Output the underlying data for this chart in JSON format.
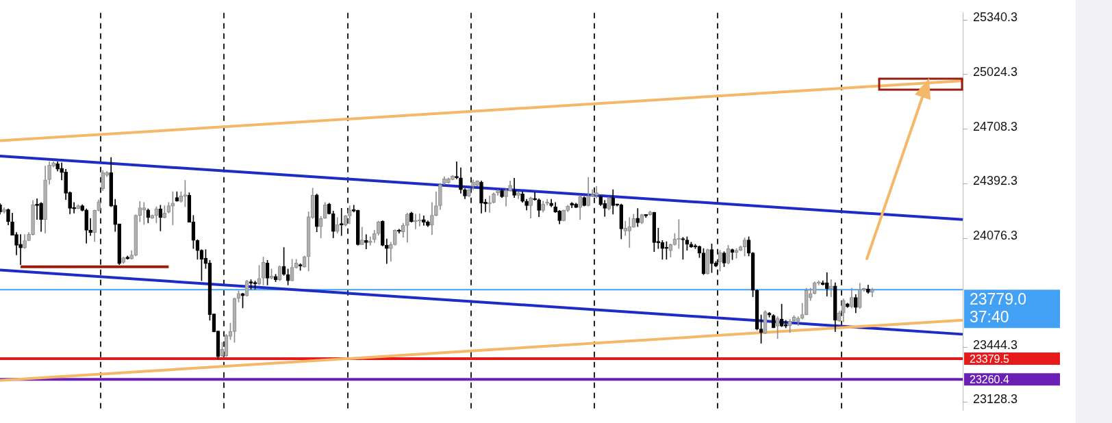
{
  "chart_data": {
    "type": "candlestick",
    "categories": [
      null,
      null,
      null,
      null,
      null,
      null,
      null,
      null,
      null,
      null,
      null,
      null,
      null,
      null,
      null,
      null,
      null,
      null,
      null,
      null,
      null,
      null,
      null,
      null,
      null,
      null,
      null,
      null,
      null,
      null,
      null,
      null,
      null,
      null,
      null,
      null,
      null,
      null,
      null,
      null,
      null,
      null,
      null,
      null,
      null,
      null,
      null,
      null,
      null,
      null,
      null,
      null,
      null,
      null,
      null,
      null,
      null,
      null,
      null,
      null,
      null,
      null,
      null,
      null,
      null,
      null,
      null,
      null,
      null,
      null,
      null,
      null,
      null,
      null,
      null,
      null,
      null,
      null,
      null,
      null,
      null,
      null,
      null,
      null,
      null,
      null,
      null,
      null,
      null,
      null,
      null,
      null,
      null,
      null,
      null,
      null,
      null,
      null,
      null,
      null,
      null,
      null,
      null,
      null,
      null,
      null,
      null,
      null,
      null,
      null,
      null,
      null,
      null,
      null,
      null,
      null,
      null,
      null,
      null,
      null,
      null,
      null,
      null,
      null,
      null,
      null,
      null,
      null,
      null,
      null,
      null,
      null,
      null,
      null,
      null,
      null,
      null,
      null,
      null,
      null,
      null,
      null,
      null,
      null,
      null,
      null,
      null,
      null,
      null,
      null,
      null,
      null,
      null,
      null,
      null,
      null,
      null,
      null,
      null,
      null,
      null,
      null,
      null,
      null,
      null,
      null,
      null,
      null,
      null,
      null,
      null,
      null,
      null,
      null,
      null,
      null,
      null,
      null,
      null,
      null,
      null,
      null,
      null,
      null,
      null,
      null,
      null,
      null,
      null,
      null,
      null,
      null,
      null,
      null,
      null,
      null,
      null,
      null,
      null,
      null,
      null,
      null,
      null,
      null,
      null,
      null,
      null,
      null,
      null,
      null,
      null,
      null,
      null,
      null,
      null,
      null,
      null,
      null,
      null,
      null,
      null,
      null,
      null,
      null,
      null,
      null,
      null,
      null,
      null,
      null,
      null,
      null,
      null,
      null,
      null
    ],
    "ohlc": [
      [
        24271,
        24278,
        24216,
        24228
      ],
      [
        24230,
        24253,
        24222,
        24243
      ],
      [
        24243,
        24247,
        24154,
        24172
      ],
      [
        24172,
        24222,
        24094,
        24094
      ],
      [
        24098,
        24110,
        23980,
        24036
      ],
      [
        24042,
        24098,
        23924,
        24021
      ],
      [
        24021,
        24098,
        24017,
        24063
      ],
      [
        24063,
        24110,
        24061,
        24100
      ],
      [
        24098,
        24296,
        24094,
        24271
      ],
      [
        24275,
        24305,
        24185,
        24265
      ],
      [
        24280,
        24284,
        24116,
        24185
      ],
      [
        24185,
        24495,
        24106,
        24414
      ],
      [
        24416,
        24519,
        24389,
        24501
      ],
      [
        24495,
        24519,
        24488,
        24513
      ],
      [
        24507,
        24519,
        24466,
        24476
      ],
      [
        24482,
        24513,
        24414,
        24457
      ],
      [
        24460,
        24476,
        24300,
        24337
      ],
      [
        24342,
        24346,
        24218,
        24250
      ],
      [
        24250,
        24284,
        24222,
        24247
      ],
      [
        24249,
        24271,
        24247,
        24265
      ],
      [
        24265,
        24271,
        24234,
        24238
      ],
      [
        24240,
        24247,
        24048,
        24123
      ],
      [
        24123,
        24191,
        24092,
        24110
      ],
      [
        24110,
        24240,
        24058,
        24238
      ],
      [
        24238,
        24299,
        24234,
        24288
      ],
      [
        24364,
        24470,
        24352,
        24457
      ],
      [
        24441,
        24464,
        24433,
        24457
      ],
      [
        24457,
        24544,
        24259,
        24263
      ],
      [
        24268,
        24302,
        24116,
        24156
      ],
      [
        24160,
        24160,
        23924,
        23930
      ],
      [
        23937,
        23968,
        23930,
        23964
      ],
      [
        23968,
        23974,
        23955,
        23958
      ],
      [
        23958,
        24005,
        23955,
        23980
      ],
      [
        23978,
        24213,
        23974,
        24209
      ],
      [
        24209,
        24290,
        24172,
        24253
      ],
      [
        24240,
        24284,
        24156,
        24253
      ],
      [
        24240,
        24247,
        24166,
        24197
      ],
      [
        24193,
        24212,
        24191,
        24209
      ],
      [
        24209,
        24259,
        24166,
        24247
      ],
      [
        24247,
        24268,
        24119,
        24197
      ],
      [
        24197,
        24265,
        24193,
        24222
      ],
      [
        24228,
        24284,
        24222,
        24265
      ],
      [
        24263,
        24346,
        24154,
        24280
      ],
      [
        24312,
        24346,
        24290,
        24292
      ],
      [
        24290,
        24346,
        24284,
        24321
      ],
      [
        24320,
        24412,
        24259,
        24325
      ],
      [
        24325,
        24340,
        24169,
        24169
      ],
      [
        24172,
        24209,
        24017,
        24064
      ],
      [
        24064,
        24069,
        23955,
        24005
      ],
      [
        24007,
        24011,
        23831,
        23955
      ],
      [
        23961,
        24011,
        23902,
        23930
      ],
      [
        23934,
        23949,
        23602,
        23635
      ],
      [
        23639,
        23639,
        23534,
        23536
      ],
      [
        23540,
        23540,
        23379,
        23391
      ],
      [
        23397,
        23474,
        23391,
        23434
      ],
      [
        23397,
        23521,
        23391,
        23513
      ],
      [
        23509,
        23586,
        23490,
        23537
      ],
      [
        23537,
        23732,
        23474,
        23728
      ],
      [
        23728,
        23772,
        23707,
        23757
      ],
      [
        23757,
        23759,
        23673,
        23744
      ],
      [
        23744,
        23834,
        23741,
        23829
      ],
      [
        23825,
        23837,
        23782,
        23816
      ],
      [
        23816,
        23829,
        23782,
        23813
      ],
      [
        23813,
        23920,
        23806,
        23844
      ],
      [
        23847,
        23968,
        23806,
        23937
      ],
      [
        23933,
        23949,
        23806,
        23846
      ],
      [
        23846,
        23899,
        23841,
        23858
      ],
      [
        23856,
        23868,
        23825,
        23837
      ],
      [
        23837,
        23918,
        23831,
        23912
      ],
      [
        23914,
        24023,
        23862,
        23868
      ],
      [
        23866,
        23899,
        23806,
        23831
      ],
      [
        23831,
        23955,
        23829,
        23908
      ],
      [
        23906,
        23955,
        23903,
        23933
      ],
      [
        23923,
        23930,
        23891,
        23916
      ],
      [
        23912,
        23974,
        23908,
        23970
      ],
      [
        23970,
        24230,
        23887,
        24201
      ],
      [
        24197,
        24367,
        24191,
        24325
      ],
      [
        24327,
        24333,
        24114,
        24144
      ],
      [
        24144,
        24203,
        24079,
        24191
      ],
      [
        24193,
        24284,
        24191,
        24270
      ],
      [
        24274,
        24280,
        24216,
        24218
      ],
      [
        24219,
        24234,
        24079,
        24116
      ],
      [
        24116,
        24197,
        24106,
        24156
      ],
      [
        24156,
        24250,
        24092,
        24154
      ],
      [
        24154,
        24209,
        24147,
        24206
      ],
      [
        24206,
        24265,
        24160,
        24240
      ],
      [
        24238,
        24268,
        24228,
        24234
      ],
      [
        24238,
        24240,
        24036,
        24040
      ],
      [
        24040,
        24141,
        24040,
        24067
      ],
      [
        24064,
        24098,
        24015,
        24052
      ],
      [
        24052,
        24085,
        24036,
        24061
      ],
      [
        24069,
        24123,
        24052,
        24104
      ],
      [
        24104,
        24176,
        24094,
        24172
      ],
      [
        24176,
        24178,
        24032,
        24036
      ],
      [
        24036,
        24073,
        23930,
        24017
      ],
      [
        24017,
        24054,
        23943,
        24040
      ],
      [
        24040,
        24126,
        24036,
        24123
      ],
      [
        24123,
        24129,
        24106,
        24116
      ],
      [
        24114,
        24164,
        24082,
        24151
      ],
      [
        24151,
        24222,
        24054,
        24216
      ],
      [
        24222,
        24228,
        24169,
        24172
      ],
      [
        24172,
        24216,
        24131,
        24175
      ],
      [
        24175,
        24218,
        24147,
        24182
      ],
      [
        24185,
        24206,
        24151,
        24169
      ],
      [
        24172,
        24178,
        24144,
        24151
      ],
      [
        24154,
        24284,
        24098,
        24209
      ],
      [
        24209,
        24346,
        24206,
        24265
      ],
      [
        24265,
        24395,
        24243,
        24387
      ],
      [
        24395,
        24433,
        24387,
        24420
      ],
      [
        24399,
        24426,
        24395,
        24420
      ],
      [
        24416,
        24441,
        24414,
        24436
      ],
      [
        24435,
        24519,
        24420,
        24426
      ],
      [
        24426,
        24485,
        24337,
        24358
      ],
      [
        24358,
        24364,
        24305,
        24321
      ],
      [
        24321,
        24362,
        24317,
        24358
      ],
      [
        24377,
        24414,
        24358,
        24402
      ],
      [
        24383,
        24410,
        24379,
        24408
      ],
      [
        24402,
        24408,
        24222,
        24280
      ],
      [
        24286,
        24302,
        24230,
        24275
      ],
      [
        24275,
        24321,
        24226,
        24284
      ],
      [
        24284,
        24340,
        24280,
        24333
      ],
      [
        24340,
        24358,
        24325,
        24352
      ],
      [
        24352,
        24358,
        24312,
        24317
      ],
      [
        24317,
        24362,
        24263,
        24354
      ],
      [
        24352,
        24408,
        24350,
        24383
      ],
      [
        24354,
        24424,
        24312,
        24325
      ],
      [
        24325,
        24346,
        24305,
        24340
      ],
      [
        24333,
        24346,
        24284,
        24290
      ],
      [
        24292,
        24302,
        24240,
        24265
      ],
      [
        24265,
        24315,
        24193,
        24309
      ],
      [
        24302,
        24342,
        24296,
        24300
      ],
      [
        24300,
        24305,
        24201,
        24238
      ],
      [
        24238,
        24292,
        24228,
        24275
      ],
      [
        24278,
        24302,
        24268,
        24280
      ],
      [
        24280,
        24302,
        24259,
        24265
      ],
      [
        24259,
        24284,
        24226,
        24228
      ],
      [
        24234,
        24238,
        24160,
        24178
      ],
      [
        24178,
        24240,
        24176,
        24238
      ],
      [
        24238,
        24268,
        24230,
        24263
      ],
      [
        24280,
        24284,
        24253,
        24268
      ],
      [
        24275,
        24280,
        24253,
        24255
      ],
      [
        24255,
        24325,
        24185,
        24317
      ],
      [
        24312,
        24317,
        24263,
        24265
      ],
      [
        24265,
        24429,
        24263,
        24321
      ],
      [
        24321,
        24358,
        24317,
        24325
      ],
      [
        24325,
        24377,
        24309,
        24340
      ],
      [
        24317,
        24321,
        24265,
        24271
      ],
      [
        24278,
        24296,
        24203,
        24250
      ],
      [
        24247,
        24315,
        24240,
        24309
      ],
      [
        24309,
        24358,
        24216,
        24265
      ],
      [
        24271,
        24275,
        24263,
        24268
      ],
      [
        24271,
        24275,
        24073,
        24131
      ],
      [
        24119,
        24176,
        24092,
        24135
      ],
      [
        24119,
        24197,
        24023,
        24144
      ],
      [
        24141,
        24216,
        24139,
        24191
      ],
      [
        24193,
        24249,
        24144,
        24166
      ],
      [
        24166,
        24216,
        24160,
        24213
      ],
      [
        24209,
        24213,
        24197,
        24206
      ],
      [
        24213,
        24234,
        24209,
        24228
      ],
      [
        24226,
        24228,
        23999,
        24052
      ],
      [
        24054,
        24135,
        24017,
        24051
      ],
      [
        24052,
        24064,
        23955,
        24017
      ],
      [
        24020,
        24057,
        23955,
        24017
      ],
      [
        24005,
        24044,
        23968,
        24040
      ],
      [
        24040,
        24104,
        24036,
        24073
      ],
      [
        24069,
        24185,
        24017,
        24073
      ],
      [
        24070,
        24082,
        23955,
        24067
      ],
      [
        24067,
        24085,
        24007,
        24042
      ],
      [
        24042,
        24054,
        24023,
        24027
      ],
      [
        24030,
        24042,
        24017,
        24026
      ],
      [
        24030,
        24032,
        23965,
        23990
      ],
      [
        23992,
        24017,
        23866,
        23871
      ],
      [
        23871,
        24015,
        23868,
        24011
      ],
      [
        24011,
        24044,
        23878,
        23930
      ],
      [
        23933,
        23943,
        23911,
        23916
      ],
      [
        23940,
        24007,
        23887,
        23995
      ],
      [
        23992,
        23999,
        23912,
        23933
      ],
      [
        23933,
        24036,
        23928,
        24017
      ],
      [
        24011,
        24015,
        23953,
        23995
      ],
      [
        23995,
        24017,
        23961,
        24007
      ],
      [
        24007,
        24032,
        24005,
        24027
      ],
      [
        24027,
        24079,
        23974,
        24067
      ],
      [
        24067,
        24085,
        23974,
        23990
      ],
      [
        23992,
        23995,
        23738,
        23775
      ],
      [
        23775,
        23779,
        23546,
        23552
      ],
      [
        23552,
        23633,
        23469,
        23531
      ],
      [
        23527,
        23658,
        23524,
        23651
      ],
      [
        23643,
        23648,
        23620,
        23633
      ],
      [
        23630,
        23635,
        23558,
        23558
      ],
      [
        23568,
        23623,
        23496,
        23614
      ],
      [
        23608,
        23695,
        23565,
        23568
      ],
      [
        23577,
        23602,
        23558,
        23568
      ],
      [
        23571,
        23608,
        23531,
        23596
      ],
      [
        23598,
        23629,
        23593,
        23620
      ],
      [
        23596,
        23623,
        23571,
        23614
      ],
      [
        23614,
        23701,
        23608,
        23635
      ],
      [
        23635,
        23788,
        23633,
        23775
      ],
      [
        23732,
        23788,
        23717,
        23757
      ],
      [
        23757,
        23825,
        23754,
        23819
      ],
      [
        23816,
        23831,
        23806,
        23819
      ],
      [
        23819,
        23831,
        23806,
        23809
      ],
      [
        23819,
        23878,
        23742,
        23784
      ],
      [
        23784,
        23837,
        23738,
        23800
      ],
      [
        23800,
        23819,
        23536,
        23602
      ],
      [
        23598,
        23655,
        23596,
        23645
      ],
      [
        23645,
        23726,
        23593,
        23717
      ],
      [
        23697,
        23701,
        23676,
        23680
      ],
      [
        23680,
        23788,
        23673,
        23734
      ],
      [
        23734,
        23751,
        23645,
        23676
      ],
      [
        23676,
        23816,
        23670,
        23779
      ],
      [
        23779,
        23788,
        23769,
        23784
      ],
      [
        23784,
        23806,
        23757,
        23763
      ],
      [
        23763,
        23788,
        23738,
        23779
      ],
      null,
      null,
      null,
      null,
      null,
      null,
      null,
      null,
      null,
      null,
      null,
      null,
      null,
      null,
      null,
      null,
      null,
      null,
      null,
      null,
      null,
      null
    ],
    "series": [
      {
        "type": "line",
        "color": "#f5b868",
        "values": [
          24641,
          null,
          null,
          null,
          null,
          null,
          null,
          null,
          null,
          null,
          null,
          null,
          null,
          null,
          null,
          null,
          null,
          null,
          null,
          null,
          null,
          null,
          null,
          null,
          null,
          null,
          null,
          null,
          null,
          null,
          null,
          null,
          null,
          null,
          null,
          null,
          null,
          null,
          null,
          null,
          null,
          null,
          null,
          null,
          null,
          null,
          null,
          null,
          null,
          null,
          null,
          null,
          null,
          null,
          null,
          null,
          null,
          null,
          null,
          null,
          null,
          null,
          null,
          null,
          null,
          null,
          null,
          null,
          null,
          null,
          null,
          null,
          null,
          null,
          null,
          null,
          null,
          null,
          null,
          null,
          null,
          null,
          null,
          null,
          null,
          null,
          null,
          null,
          null,
          null,
          null,
          null,
          null,
          null,
          null,
          null,
          null,
          null,
          null,
          null,
          null,
          null,
          null,
          null,
          null,
          null,
          null,
          null,
          null,
          null,
          null,
          null,
          null,
          null,
          null,
          null,
          null,
          null,
          null,
          null,
          null,
          null,
          null,
          null,
          null,
          null,
          null,
          null,
          null,
          null,
          null,
          null,
          null,
          null,
          null,
          null,
          null,
          null,
          null,
          null,
          null,
          null,
          null,
          null,
          null,
          null,
          null,
          null,
          null,
          null,
          null,
          null,
          null,
          null,
          null,
          null,
          null,
          null,
          null,
          null,
          null,
          null,
          null,
          null,
          null,
          null,
          null,
          null,
          null,
          null,
          null,
          null,
          null,
          null,
          null,
          null,
          null,
          null,
          null,
          null,
          null,
          null,
          null,
          null,
          null,
          null,
          null,
          null,
          null,
          null,
          null,
          null,
          null,
          null,
          null,
          null,
          null,
          null,
          null,
          null,
          null,
          null,
          null,
          null,
          null,
          null,
          null,
          null,
          null,
          null,
          null,
          null,
          null,
          null,
          null,
          null,
          null,
          null,
          null,
          null,
          null,
          null,
          null,
          null,
          null,
          null,
          null,
          null,
          null,
          null,
          null,
          null,
          null,
          null,
          24988
        ]
      },
      {
        "type": "line",
        "color": "#f5b868",
        "values": [
          23254,
          null,
          null,
          null,
          null,
          null,
          null,
          null,
          null,
          null,
          null,
          null,
          null,
          null,
          null,
          null,
          null,
          null,
          null,
          null,
          null,
          null,
          null,
          null,
          null,
          null,
          null,
          null,
          null,
          null,
          null,
          null,
          null,
          null,
          null,
          null,
          null,
          null,
          null,
          null,
          null,
          null,
          null,
          null,
          null,
          null,
          null,
          null,
          null,
          null,
          null,
          null,
          null,
          null,
          null,
          null,
          null,
          null,
          null,
          null,
          null,
          null,
          null,
          null,
          null,
          null,
          null,
          null,
          null,
          null,
          null,
          null,
          null,
          null,
          null,
          null,
          null,
          null,
          null,
          null,
          null,
          null,
          null,
          null,
          null,
          null,
          null,
          null,
          null,
          null,
          null,
          null,
          null,
          null,
          null,
          null,
          null,
          null,
          null,
          null,
          null,
          null,
          null,
          null,
          null,
          null,
          null,
          null,
          null,
          null,
          null,
          null,
          null,
          null,
          null,
          null,
          null,
          null,
          null,
          null,
          null,
          null,
          null,
          null,
          null,
          null,
          null,
          null,
          null,
          null,
          null,
          null,
          null,
          null,
          null,
          null,
          null,
          null,
          null,
          null,
          null,
          null,
          null,
          null,
          null,
          null,
          null,
          null,
          null,
          null,
          null,
          null,
          null,
          null,
          null,
          null,
          null,
          null,
          null,
          null,
          null,
          null,
          null,
          null,
          null,
          null,
          null,
          null,
          null,
          null,
          null,
          null,
          null,
          null,
          null,
          null,
          null,
          null,
          null,
          null,
          null,
          null,
          null,
          null,
          null,
          null,
          null,
          null,
          null,
          null,
          null,
          null,
          null,
          null,
          null,
          null,
          null,
          null,
          null,
          null,
          null,
          null,
          null,
          null,
          null,
          null,
          null,
          null,
          null,
          null,
          null,
          null,
          null,
          null,
          null,
          null,
          null,
          null,
          null,
          null,
          null,
          null,
          null,
          null,
          null,
          null,
          null,
          null,
          null,
          null,
          null,
          null,
          null,
          null,
          23603
        ]
      },
      {
        "type": "line",
        "color": "#1e2bc4",
        "values": [
          24552,
          null,
          null,
          null,
          null,
          null,
          null,
          null,
          null,
          null,
          null,
          null,
          null,
          null,
          null,
          null,
          null,
          null,
          null,
          null,
          null,
          null,
          null,
          null,
          null,
          null,
          null,
          null,
          null,
          null,
          null,
          null,
          null,
          null,
          null,
          null,
          null,
          null,
          null,
          null,
          null,
          null,
          null,
          null,
          null,
          null,
          null,
          null,
          null,
          null,
          null,
          null,
          null,
          null,
          null,
          null,
          null,
          null,
          null,
          null,
          null,
          null,
          null,
          null,
          null,
          null,
          null,
          null,
          null,
          null,
          null,
          null,
          null,
          null,
          null,
          null,
          null,
          null,
          null,
          null,
          null,
          null,
          null,
          null,
          null,
          null,
          null,
          null,
          null,
          null,
          null,
          null,
          null,
          null,
          null,
          null,
          null,
          null,
          null,
          null,
          null,
          null,
          null,
          null,
          null,
          null,
          null,
          null,
          null,
          null,
          null,
          null,
          null,
          null,
          null,
          null,
          null,
          null,
          null,
          null,
          null,
          null,
          null,
          null,
          null,
          null,
          null,
          null,
          null,
          null,
          null,
          null,
          null,
          null,
          null,
          null,
          null,
          null,
          null,
          null,
          null,
          null,
          null,
          null,
          null,
          null,
          null,
          null,
          null,
          null,
          null,
          null,
          null,
          null,
          null,
          null,
          null,
          null,
          null,
          null,
          null,
          null,
          null,
          null,
          null,
          null,
          null,
          null,
          null,
          null,
          null,
          null,
          null,
          null,
          null,
          null,
          null,
          null,
          null,
          null,
          null,
          null,
          null,
          null,
          null,
          null,
          null,
          null,
          null,
          null,
          null,
          null,
          null,
          null,
          null,
          null,
          null,
          null,
          null,
          null,
          null,
          null,
          null,
          null,
          null,
          null,
          null,
          null,
          null,
          null,
          null,
          null,
          null,
          null,
          null,
          null,
          null,
          null,
          null,
          null,
          null,
          null,
          null,
          null,
          null,
          null,
          null,
          null,
          null,
          null,
          null,
          null,
          null,
          null,
          24185
        ]
      },
      {
        "type": "line",
        "color": "#1e2bc4",
        "values": [
          23893,
          null,
          null,
          null,
          null,
          null,
          null,
          null,
          null,
          null,
          null,
          null,
          null,
          null,
          null,
          null,
          null,
          null,
          null,
          null,
          null,
          null,
          null,
          null,
          null,
          null,
          null,
          null,
          null,
          null,
          null,
          null,
          null,
          null,
          null,
          null,
          null,
          null,
          null,
          null,
          null,
          null,
          null,
          null,
          null,
          null,
          null,
          null,
          null,
          null,
          null,
          null,
          null,
          null,
          null,
          null,
          null,
          null,
          null,
          null,
          null,
          null,
          null,
          null,
          null,
          null,
          null,
          null,
          null,
          null,
          null,
          null,
          null,
          null,
          null,
          null,
          null,
          null,
          null,
          null,
          null,
          null,
          null,
          null,
          null,
          null,
          null,
          null,
          null,
          null,
          null,
          null,
          null,
          null,
          null,
          null,
          null,
          null,
          null,
          null,
          null,
          null,
          null,
          null,
          null,
          null,
          null,
          null,
          null,
          null,
          null,
          null,
          null,
          null,
          null,
          null,
          null,
          null,
          null,
          null,
          null,
          null,
          null,
          null,
          null,
          null,
          null,
          null,
          null,
          null,
          null,
          null,
          null,
          null,
          null,
          null,
          null,
          null,
          null,
          null,
          null,
          null,
          null,
          null,
          null,
          null,
          null,
          null,
          null,
          null,
          null,
          null,
          null,
          null,
          null,
          null,
          null,
          null,
          null,
          null,
          null,
          null,
          null,
          null,
          null,
          null,
          null,
          null,
          null,
          null,
          null,
          null,
          null,
          null,
          null,
          null,
          null,
          null,
          null,
          null,
          null,
          null,
          null,
          null,
          null,
          null,
          null,
          null,
          null,
          null,
          null,
          null,
          null,
          null,
          null,
          null,
          null,
          null,
          null,
          null,
          null,
          null,
          null,
          null,
          null,
          null,
          null,
          null,
          null,
          null,
          null,
          null,
          null,
          null,
          null,
          null,
          null,
          null,
          null,
          null,
          null,
          null,
          null,
          null,
          null,
          null,
          null,
          null,
          null,
          null,
          null,
          null,
          null,
          null,
          23521
        ]
      },
      {
        "type": "line",
        "color": "#9a1c0c",
        "values": [
          null,
          null,
          null,
          null,
          null,
          23912,
          null,
          null,
          null,
          null,
          null,
          null,
          null,
          null,
          null,
          null,
          null,
          null,
          null,
          null,
          null,
          null,
          null,
          null,
          null,
          null,
          null,
          null,
          null,
          null,
          null,
          null,
          null,
          null,
          null,
          null,
          null,
          null,
          null,
          null,
          null,
          23912,
          null,
          null,
          null,
          null,
          null,
          null,
          null,
          null,
          null,
          null,
          null,
          null,
          null,
          null,
          null,
          null,
          null,
          null,
          null,
          null,
          null,
          null,
          null,
          null,
          null,
          null,
          null,
          null,
          null,
          null,
          null,
          null,
          null,
          null,
          null,
          null,
          null,
          null,
          null,
          null,
          null,
          null,
          null,
          null,
          null,
          null,
          null,
          null,
          null,
          null,
          null,
          null,
          null,
          null,
          null,
          null,
          null,
          null,
          null,
          null,
          null,
          null,
          null,
          null,
          null,
          null,
          null,
          null,
          null,
          null,
          null,
          null,
          null,
          null,
          null,
          null,
          null,
          null,
          null,
          null,
          null,
          null,
          null,
          null,
          null,
          null,
          null,
          null,
          null,
          null,
          null,
          null,
          null,
          null,
          null,
          null,
          null,
          null,
          null,
          null,
          null,
          null,
          null,
          null,
          null,
          null,
          null,
          null,
          null,
          null,
          null,
          null,
          null,
          null,
          null,
          null,
          null,
          null,
          null,
          null,
          null,
          null,
          null,
          null,
          null,
          null,
          null,
          null,
          null,
          null,
          null,
          null,
          null,
          null,
          null,
          null,
          null,
          null,
          null,
          null,
          null,
          null,
          null,
          null,
          null,
          null,
          null,
          null,
          null,
          null,
          null,
          null,
          null,
          null,
          null,
          null,
          null,
          null,
          null,
          null,
          null,
          null,
          null,
          null,
          null,
          null,
          null,
          null,
          null,
          null,
          null,
          null,
          null,
          null,
          null,
          null,
          null,
          null,
          null,
          null,
          null,
          null,
          null,
          null,
          null,
          null,
          null,
          null,
          null,
          null,
          null,
          null,
          null
        ]
      }
    ],
    "ref_lines": [
      {
        "axis": "y",
        "value": 23779,
        "label": "23779.0",
        "color": "#42a1f4"
      },
      {
        "axis": "y",
        "value": 23379.5,
        "label": "23379.5",
        "color": "#e8191b"
      },
      {
        "axis": "y",
        "value": 23260.4,
        "label": "23260.4",
        "color": "#6a1fb5"
      }
    ],
    "annotations": [
      "37:40"
    ],
    "ylim": [
      23082,
      25381
    ],
    "yticks": [
      25340.3,
      25024.3,
      24708.3,
      24392.3,
      24076.3,
      23444.3,
      23128.3
    ],
    "grid": "x",
    "tick_labels": "y"
  }
}
